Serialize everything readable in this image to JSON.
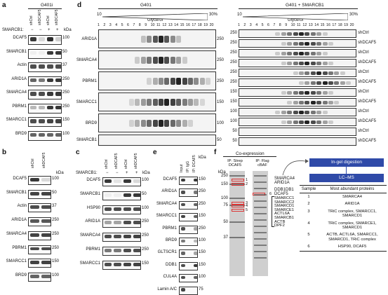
{
  "panels": {
    "a": {
      "letter": "a",
      "cell_line": "G401i",
      "row_header": "SMARCB1:",
      "mw_unit": "kDa",
      "lanes": [
        {
          "name": "shCtrl",
          "smarcb1": "−"
        },
        {
          "name": "shDCAF5",
          "smarcb1": "−"
        },
        {
          "name": "shCtrl",
          "smarcb1": "+"
        },
        {
          "name": "shDCAF5",
          "smarcb1": "+"
        }
      ],
      "rows": [
        {
          "label": "DCAF5",
          "mw": "100"
        },
        {
          "label": "SMARCB1",
          "mw": "50"
        },
        {
          "label": "Actin",
          "mw": "37"
        },
        {
          "label": "ARID1A",
          "mw": "250"
        },
        {
          "label": "SMARCA4",
          "mw": "250"
        },
        {
          "label": "PBRM1",
          "mw": "250"
        },
        {
          "label": "SMARCC1",
          "mw": "150"
        },
        {
          "label": "BRD9",
          "mw": "100"
        }
      ],
      "band_levels": [
        [
          0.9,
          0.15,
          0.95,
          0.2
        ],
        [
          0.05,
          0.05,
          0.9,
          0.9
        ],
        [
          0.8,
          0.8,
          0.8,
          0.8
        ],
        [
          0.7,
          0.6,
          0.9,
          0.9
        ],
        [
          0.8,
          0.8,
          0.9,
          0.9
        ],
        [
          0.3,
          0.3,
          0.9,
          0.9
        ],
        [
          0.8,
          0.8,
          0.85,
          0.85
        ],
        [
          0.7,
          0.7,
          0.7,
          0.7
        ]
      ]
    },
    "b": {
      "letter": "b",
      "mw_unit": "kDa",
      "lanes": [
        "shCtrl",
        "shDCAF5"
      ],
      "rows": [
        {
          "label": "DCAF5",
          "mw": "100"
        },
        {
          "label": "SMARCB1",
          "mw": "50"
        },
        {
          "label": "Actin",
          "mw": "37"
        },
        {
          "label": "ARID1A",
          "mw": "250"
        },
        {
          "label": "SMARCA4",
          "mw": "250"
        },
        {
          "label": "PBRM1",
          "mw": "250"
        },
        {
          "label": "SMARCC1",
          "mw": "150"
        },
        {
          "label": "BRD9",
          "mw": "100"
        }
      ],
      "band_levels": [
        [
          0.9,
          0.15
        ],
        [
          0.85,
          0.85
        ],
        [
          0.8,
          0.8
        ],
        [
          0.75,
          0.75
        ],
        [
          0.85,
          0.85
        ],
        [
          0.8,
          0.8
        ],
        [
          0.85,
          0.85
        ],
        [
          0.7,
          0.7
        ]
      ]
    },
    "c": {
      "letter": "c",
      "row_header": "SMARCB1:",
      "mw_unit": "kDa",
      "lanes": [
        {
          "name": "shCtrl",
          "smarcb1": "−"
        },
        {
          "name": "shDCAF5",
          "smarcb1": "−"
        },
        {
          "name": "shCtrl",
          "smarcb1": "+"
        },
        {
          "name": "shDCAF5",
          "smarcb1": "+"
        }
      ],
      "rows": [
        {
          "label": "DCAF5",
          "mw": "100"
        },
        {
          "label": "SMARCB1",
          "mw": "50"
        },
        {
          "label": "HSP90",
          "mw": "100"
        },
        {
          "label": "ARID1A",
          "mw": "250"
        },
        {
          "label": "SMARCA4",
          "mw": "250"
        },
        {
          "label": "PBRM1",
          "mw": "250"
        },
        {
          "label": "SMARCC1",
          "mw": "150"
        }
      ],
      "band_levels": [
        [
          0.9,
          0.1,
          0.9,
          0.15
        ],
        [
          0.05,
          0.05,
          0.9,
          0.9
        ],
        [
          0.8,
          0.8,
          0.8,
          0.8
        ],
        [
          0.4,
          0.4,
          0.8,
          0.8
        ],
        [
          0.8,
          0.8,
          0.85,
          0.85
        ],
        [
          0.6,
          0.6,
          0.8,
          0.8
        ],
        [
          0.8,
          0.8,
          0.85,
          0.85
        ]
      ]
    },
    "d": {
      "letter": "d",
      "groups": [
        {
          "title": "G401",
          "glycerol_label": "Glycerol"
        },
        {
          "title": "G401 + SMARCB1",
          "glycerol_label": "Glycerol"
        }
      ],
      "gradient_start": "10",
      "gradient_end": "30%",
      "fractions": [
        "1",
        "2",
        "3",
        "4",
        "5",
        "6",
        "7",
        "8",
        "9",
        "10",
        "11",
        "12",
        "13",
        "14",
        "15",
        "16",
        "17",
        "18",
        "19",
        "20"
      ],
      "left_rows": [
        {
          "label": "ARID1A",
          "mw": "250",
          "peak": 11,
          "width": 3
        },
        {
          "label": "SMARCA4",
          "mw": "250",
          "peak": 11,
          "width": 4
        },
        {
          "label": "PBRM1",
          "mw": "250",
          "peak": 14,
          "width": 5
        },
        {
          "label": "SMARCC1",
          "mw": "150",
          "peak": 12,
          "width": 6
        },
        {
          "label": "BRD9",
          "mw": "100",
          "peak": 11,
          "width": 5
        },
        {
          "label": "SMARCB1",
          "mw": "50",
          "peak": 0,
          "width": 0
        }
      ],
      "right_rows": [
        {
          "condition": "shCtrl",
          "mw": "250"
        },
        {
          "condition": "shDCAF5",
          "mw": "250"
        },
        {
          "condition": "shCtrl",
          "mw": "250"
        },
        {
          "condition": "shDCAF5",
          "mw": "250"
        },
        {
          "condition": "shCtrl",
          "mw": "250"
        },
        {
          "condition": "shDCAF5",
          "mw": "250"
        },
        {
          "condition": "shCtrl",
          "mw": "150"
        },
        {
          "condition": "shDCAF5",
          "mw": "150"
        },
        {
          "condition": "shCtrl",
          "mw": "100"
        },
        {
          "condition": "shDCAF5",
          "mw": "100"
        },
        {
          "condition": "shCtrl",
          "mw": "50"
        },
        {
          "condition": "shDCAF5",
          "mw": "50"
        }
      ],
      "mid_mw_labels": [
        "250",
        "250",
        "250",
        "250",
        "250",
        "250",
        "150",
        "150",
        "100",
        "100",
        "50",
        "50"
      ]
    },
    "e": {
      "letter": "e",
      "mw_unit": "kDa",
      "lanes": [
        "Input",
        "IP: IgG",
        "IP: DCAF5"
      ],
      "rows": [
        {
          "label": "DCAF5",
          "mw": "150"
        },
        {
          "label": "ARID1A",
          "mw": "250"
        },
        {
          "label": "SMARCA4",
          "mw": "250"
        },
        {
          "label": "SMARCC1",
          "mw": "150"
        },
        {
          "label": "PBRM1",
          "mw": "250"
        },
        {
          "label": "BRD9",
          "mw": "100"
        },
        {
          "label": "GLTSCR1",
          "mw": "150"
        },
        {
          "label": "DDB1",
          "mw": "150"
        },
        {
          "label": "CUL4A",
          "mw": "100"
        },
        {
          "label": "Lamin A/C",
          "mw": "75"
        }
      ],
      "band_levels": [
        [
          0.9,
          0,
          0.9
        ],
        [
          0.8,
          0,
          0.6
        ],
        [
          0.8,
          0,
          0.7
        ],
        [
          0.85,
          0,
          0.7
        ],
        [
          0.8,
          0,
          0.4
        ],
        [
          0.6,
          0,
          0.3
        ],
        [
          0.7,
          0,
          0.4
        ],
        [
          0.8,
          0,
          0.9
        ],
        [
          0.8,
          0,
          0.7
        ],
        [
          0.85,
          0,
          0
        ]
      ]
    },
    "f": {
      "letter": "f",
      "coexpression": "Co-expression",
      "lane_titles": [
        "IP: Strep DCAF5",
        "IP: Flag cBAF"
      ],
      "mw_unit": "kDa",
      "gel_mw": [
        "250",
        "150",
        "100",
        "75",
        "50",
        "37"
      ],
      "band_numbers": [
        "1",
        "2",
        "6",
        "3",
        "4",
        "5"
      ],
      "protein_labels": [
        "SMARCA4",
        "ARID1A",
        "DDB1DB1",
        "DCAF5",
        "SMARCC1",
        "SMARCC2",
        "SMARCD1",
        "SMARCE1",
        "ACTL6A",
        "SMARCB1",
        "ACTB",
        "DPF2"
      ],
      "workflow_step1": "In-gel digestion",
      "workflow_step2": "LC–MS",
      "table_headers": [
        "Sample",
        "Most abundant proteins"
      ],
      "table_rows": [
        {
          "sample": "1",
          "proteins": "SMARCA4"
        },
        {
          "sample": "2",
          "proteins": "ARID1A"
        },
        {
          "sample": "3",
          "proteins": "TRiC complex, SMARCC1, SMARCD1"
        },
        {
          "sample": "4",
          "proteins": "TRiC complex, SMARCE1, SMARCD1"
        },
        {
          "sample": "5",
          "proteins": "ACTB, ACTL6A, SMARCC1, SMARCD1, TRiC complex"
        },
        {
          "sample": "6",
          "proteins": "HSP90, DCAF5"
        }
      ],
      "accent": "#2f4aa8"
    }
  }
}
